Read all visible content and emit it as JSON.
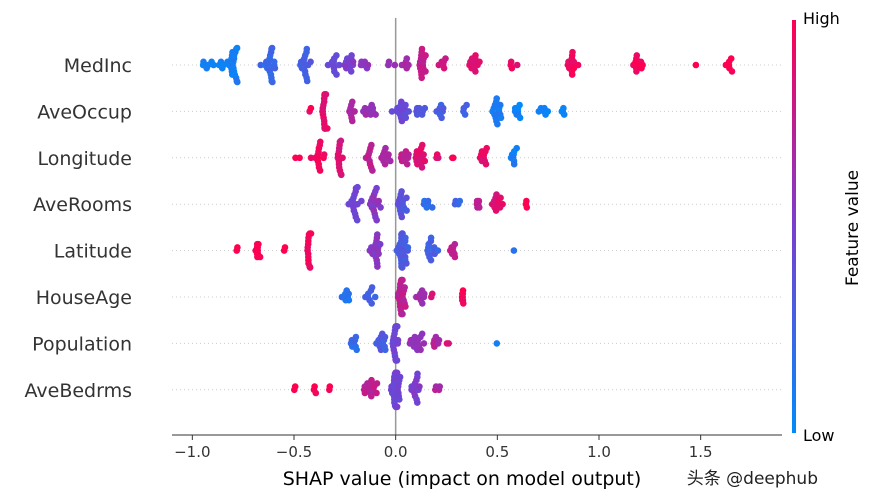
{
  "chart_data": {
    "type": "scatter",
    "subtype": "shap-beeswarm",
    "xlabel": "SHAP value (impact on model output)",
    "xlim": [
      -1.1,
      1.9
    ],
    "xticks": [
      -1.0,
      -0.5,
      0.0,
      0.5,
      1.0,
      1.5
    ],
    "xtick_labels": [
      "−1.0",
      "−0.5",
      "0.0",
      "0.5",
      "1.0",
      "1.5"
    ],
    "grid": false,
    "colorbar": {
      "title": "Feature value",
      "high_label": "High",
      "low_label": "Low",
      "low_color": "#008bfb",
      "high_color": "#ff0051",
      "mid_color": "#7a3ecf",
      "placement": "right"
    },
    "features": [
      {
        "name": "MedInc",
        "clusters": [
          [
            -0.95,
            0.1,
            4,
            0.05
          ],
          [
            -0.88,
            0.1,
            6,
            0.08
          ],
          [
            -0.8,
            0.06,
            22,
            0.1
          ],
          [
            -0.62,
            0.06,
            20,
            0.22
          ],
          [
            -0.45,
            0.05,
            16,
            0.3
          ],
          [
            -0.3,
            0.05,
            10,
            0.45
          ],
          [
            -0.23,
            0.06,
            12,
            0.5
          ],
          [
            -0.15,
            0.05,
            6,
            0.55
          ],
          [
            -0.02,
            0.04,
            3,
            0.6
          ],
          [
            0.05,
            0.06,
            6,
            0.68
          ],
          [
            0.13,
            0.04,
            16,
            0.75
          ],
          [
            0.22,
            0.05,
            6,
            0.82
          ],
          [
            0.38,
            0.05,
            12,
            0.88
          ],
          [
            0.58,
            0.03,
            4,
            0.92
          ],
          [
            0.87,
            0.06,
            12,
            0.96
          ],
          [
            1.2,
            0.05,
            10,
            0.98
          ],
          [
            1.48,
            0.02,
            1,
            1.0
          ],
          [
            1.64,
            0.03,
            6,
            1.0
          ]
        ]
      },
      {
        "name": "AveOccup",
        "clusters": [
          [
            -0.42,
            0.02,
            2,
            0.95
          ],
          [
            -0.35,
            0.02,
            24,
            0.9
          ],
          [
            -0.22,
            0.05,
            8,
            0.7
          ],
          [
            -0.13,
            0.06,
            10,
            0.62
          ],
          [
            0.03,
            0.06,
            16,
            0.42
          ],
          [
            0.12,
            0.06,
            8,
            0.35
          ],
          [
            0.22,
            0.04,
            8,
            0.3
          ],
          [
            0.35,
            0.03,
            4,
            0.25
          ],
          [
            0.5,
            0.05,
            14,
            0.1
          ],
          [
            0.6,
            0.05,
            8,
            0.07
          ],
          [
            0.72,
            0.05,
            6,
            0.05
          ],
          [
            0.82,
            0.03,
            4,
            0.02
          ]
        ]
      },
      {
        "name": "Longitude",
        "clusters": [
          [
            -0.48,
            0.02,
            2,
            1.0
          ],
          [
            -0.38,
            0.05,
            14,
            0.95
          ],
          [
            -0.27,
            0.04,
            14,
            0.85
          ],
          [
            -0.13,
            0.05,
            10,
            0.75
          ],
          [
            -0.05,
            0.05,
            10,
            0.7
          ],
          [
            0.04,
            0.05,
            10,
            0.75
          ],
          [
            0.12,
            0.04,
            16,
            0.88
          ],
          [
            0.2,
            0.03,
            3,
            0.9
          ],
          [
            0.28,
            0.02,
            2,
            0.95
          ],
          [
            0.43,
            0.04,
            10,
            0.9
          ],
          [
            0.58,
            0.03,
            8,
            0.1
          ]
        ]
      },
      {
        "name": "AveRooms",
        "clusters": [
          [
            -0.2,
            0.06,
            16,
            0.45
          ],
          [
            -0.1,
            0.04,
            18,
            0.55
          ],
          [
            0.03,
            0.04,
            14,
            0.35
          ],
          [
            0.15,
            0.05,
            6,
            0.2
          ],
          [
            0.3,
            0.05,
            4,
            0.25
          ],
          [
            0.4,
            0.04,
            6,
            0.75
          ],
          [
            0.5,
            0.05,
            12,
            0.88
          ],
          [
            0.64,
            0.01,
            3,
            1.0
          ]
        ]
      },
      {
        "name": "Latitude",
        "clusters": [
          [
            -0.78,
            0.02,
            2,
            1.0
          ],
          [
            -0.68,
            0.04,
            10,
            1.0
          ],
          [
            -0.55,
            0.02,
            2,
            1.0
          ],
          [
            -0.43,
            0.02,
            14,
            0.95
          ],
          [
            -0.1,
            0.05,
            18,
            0.55
          ],
          [
            0.03,
            0.06,
            26,
            0.3
          ],
          [
            0.17,
            0.05,
            12,
            0.28
          ],
          [
            0.28,
            0.03,
            8,
            0.75
          ],
          [
            0.58,
            0.01,
            1,
            0.1
          ]
        ]
      },
      {
        "name": "HouseAge",
        "clusters": [
          [
            -0.25,
            0.05,
            8,
            0.15
          ],
          [
            -0.12,
            0.05,
            8,
            0.3
          ],
          [
            0.03,
            0.04,
            24,
            0.75
          ],
          [
            0.12,
            0.04,
            8,
            0.65
          ],
          [
            0.18,
            0.02,
            2,
            0.8
          ],
          [
            0.33,
            0.01,
            8,
            1.0
          ]
        ]
      },
      {
        "name": "Population",
        "clusters": [
          [
            -0.2,
            0.04,
            8,
            0.2
          ],
          [
            -0.07,
            0.06,
            12,
            0.3
          ],
          [
            0.0,
            0.03,
            20,
            0.45
          ],
          [
            0.1,
            0.06,
            14,
            0.6
          ],
          [
            0.2,
            0.04,
            6,
            0.7
          ],
          [
            0.26,
            0.02,
            2,
            0.85
          ],
          [
            0.5,
            0.01,
            1,
            0.1
          ]
        ]
      },
      {
        "name": "AveBedrms",
        "clusters": [
          [
            -0.5,
            0.02,
            2,
            1.0
          ],
          [
            -0.4,
            0.03,
            3,
            1.0
          ],
          [
            -0.33,
            0.02,
            2,
            1.0
          ],
          [
            -0.13,
            0.06,
            14,
            0.75
          ],
          [
            0.0,
            0.04,
            34,
            0.45
          ],
          [
            0.1,
            0.06,
            14,
            0.5
          ],
          [
            0.2,
            0.03,
            4,
            0.7
          ]
        ]
      }
    ]
  },
  "watermark": "头条 @deephub"
}
